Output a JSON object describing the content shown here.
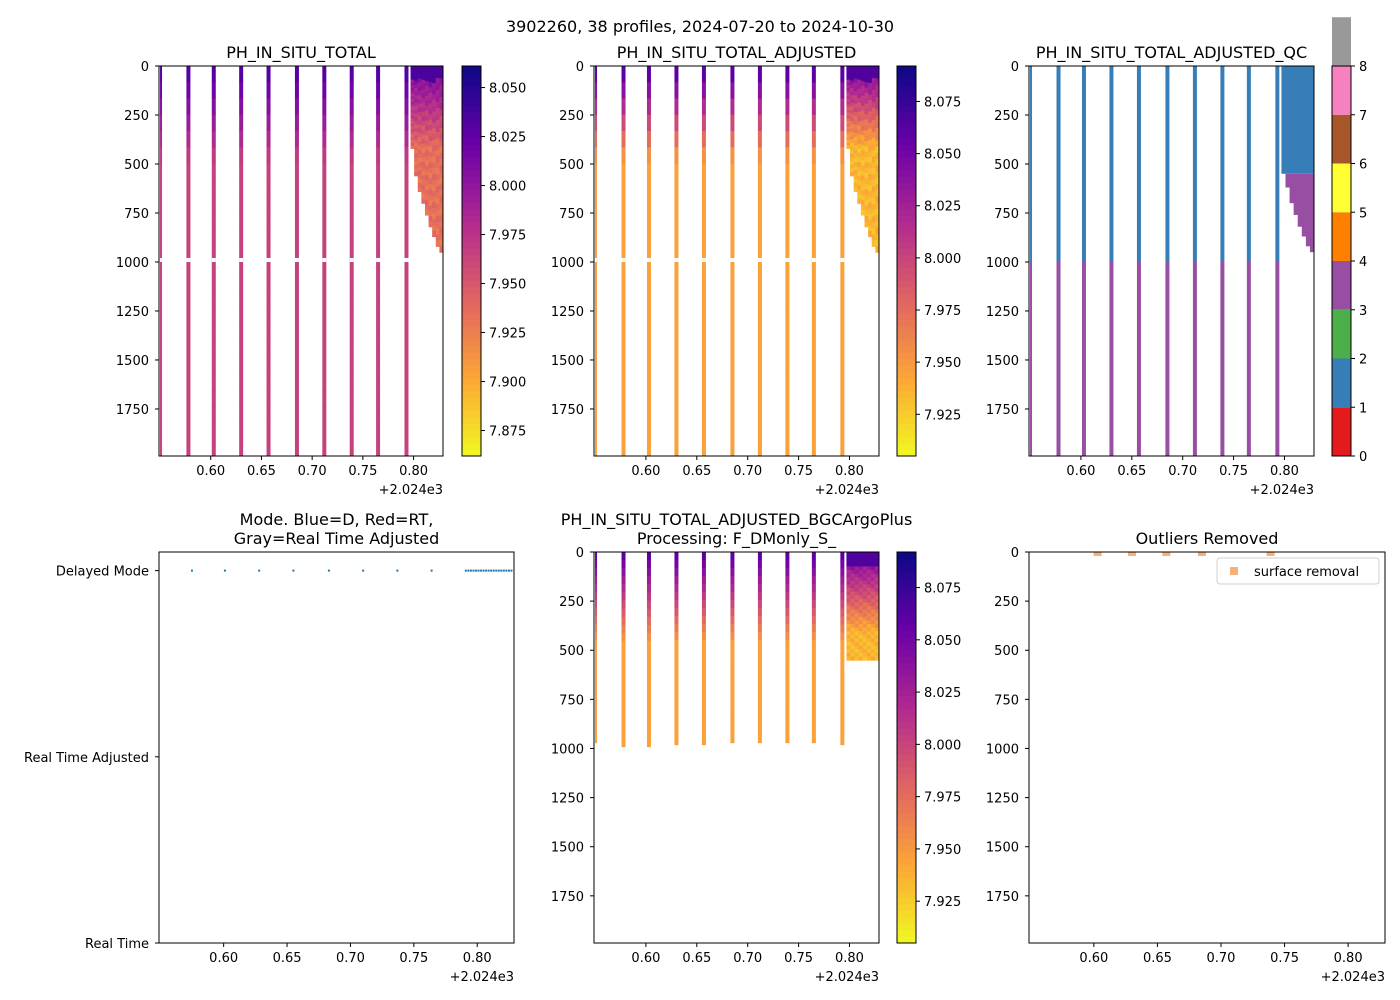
{
  "figure": {
    "suptitle": "3902260, 38 profiles, 2024-07-20 to 2024-10-30",
    "x_offset_label": "+2.024e3"
  },
  "chart_data": [
    {
      "id": "ph-total",
      "type": "heatmap",
      "title": "PH_IN_SITU_TOTAL",
      "x_ticks": [
        "0.60",
        "0.65",
        "0.70",
        "0.75",
        "0.80"
      ],
      "x_tick_values": [
        0.6,
        0.65,
        0.7,
        0.75,
        0.8
      ],
      "xlim": [
        0.549,
        0.829
      ],
      "y_ticks": [
        "0",
        "250",
        "500",
        "750",
        "1000",
        "1250",
        "1500",
        "1750"
      ],
      "y_tick_values": [
        0,
        250,
        500,
        750,
        1000,
        1250,
        1500,
        1750
      ],
      "ylim": [
        0,
        1990
      ],
      "colormap": "plasma_r",
      "colorbar": {
        "range": [
          7.862,
          8.061
        ],
        "ticks": [
          "7.875",
          "7.900",
          "7.925",
          "7.950",
          "7.975",
          "8.000",
          "8.025",
          "8.050"
        ],
        "tick_values": [
          7.875,
          7.9,
          7.925,
          7.95,
          7.975,
          8.0,
          8.025,
          8.05
        ]
      },
      "profiles": {
        "x": [
          0.551,
          0.578,
          0.603,
          0.63,
          0.657,
          0.685,
          0.712,
          0.739,
          0.765,
          0.793
        ],
        "max_depth": 1990,
        "gap_depth": 990,
        "surface_value": 8.03,
        "deep_value": 7.965
      },
      "dense_block": {
        "x_start": 0.797,
        "x_end": 0.829,
        "surface_value": 8.035,
        "mid_value": 7.935,
        "max_depth": [
          420,
          560,
          640,
          700,
          760,
          820,
          870,
          920,
          950
        ]
      }
    },
    {
      "id": "ph-adjusted",
      "type": "heatmap",
      "title": "PH_IN_SITU_TOTAL_ADJUSTED",
      "x_ticks": [
        "0.60",
        "0.65",
        "0.70",
        "0.75",
        "0.80"
      ],
      "x_tick_values": [
        0.6,
        0.65,
        0.7,
        0.75,
        0.8
      ],
      "xlim": [
        0.549,
        0.829
      ],
      "y_ticks": [
        "0",
        "250",
        "500",
        "750",
        "1000",
        "1250",
        "1500",
        "1750"
      ],
      "y_tick_values": [
        0,
        250,
        500,
        750,
        1000,
        1250,
        1500,
        1750
      ],
      "ylim": [
        0,
        1990
      ],
      "colormap": "plasma_r",
      "colorbar": {
        "range": [
          7.905,
          8.092
        ],
        "ticks": [
          "7.925",
          "7.950",
          "7.975",
          "8.000",
          "8.025",
          "8.050",
          "8.075"
        ],
        "tick_values": [
          7.925,
          7.95,
          7.975,
          8.0,
          8.025,
          8.05,
          8.075
        ]
      },
      "profiles": {
        "x": [
          0.551,
          0.578,
          0.603,
          0.63,
          0.657,
          0.685,
          0.712,
          0.739,
          0.765,
          0.793
        ],
        "max_depth": 1990,
        "gap_depth": 990,
        "surface_value": 8.06,
        "deep_value": 7.945
      },
      "dense_block": {
        "x_start": 0.797,
        "x_end": 0.829,
        "surface_value": 8.065,
        "mid_value": 7.935,
        "max_depth": [
          420,
          560,
          640,
          700,
          760,
          820,
          870,
          920,
          950
        ]
      }
    },
    {
      "id": "ph-adjusted-qc",
      "type": "heatmap",
      "title": "PH_IN_SITU_TOTAL_ADJUSTED_QC",
      "x_ticks": [
        "0.60",
        "0.65",
        "0.70",
        "0.75",
        "0.80"
      ],
      "x_tick_values": [
        0.6,
        0.65,
        0.7,
        0.75,
        0.8
      ],
      "xlim": [
        0.549,
        0.829
      ],
      "y_ticks": [
        "0",
        "250",
        "500",
        "750",
        "1000",
        "1250",
        "1500",
        "1750"
      ],
      "y_tick_values": [
        0,
        250,
        500,
        750,
        1000,
        1250,
        1500,
        1750
      ],
      "ylim": [
        0,
        1990
      ],
      "colormap": "qc-categorical",
      "colorbar": {
        "range": [
          0,
          8
        ],
        "ticks": [
          "0",
          "1",
          "2",
          "3",
          "4",
          "5",
          "6",
          "7",
          "8"
        ],
        "tick_values": [
          0,
          1,
          2,
          3,
          4,
          5,
          6,
          7,
          8
        ],
        "categories": [
          "#e41a1c",
          "#377eb8",
          "#4daf4a",
          "#984ea3",
          "#ff7f00",
          "#ffff33",
          "#a65628",
          "#f781bf",
          "#999999"
        ]
      },
      "profiles": {
        "x": [
          0.551,
          0.578,
          0.603,
          0.63,
          0.657,
          0.685,
          0.712,
          0.739,
          0.765,
          0.793
        ],
        "max_depth": 1990,
        "upper_flag": 1,
        "lower_flag": 3,
        "flag_change_depth": 1000
      },
      "dense_block": {
        "x_start": 0.797,
        "x_end": 0.829,
        "upper_flag": 1,
        "lower_flag": 3,
        "flag_change_depth": 550,
        "max_depth": [
          550,
          620,
          700,
          760,
          820,
          870,
          920,
          950
        ]
      }
    },
    {
      "id": "mode",
      "type": "scatter",
      "title_lines": [
        "Mode. Blue=D, Red=RT,",
        "Gray=Real Time Adjusted"
      ],
      "x_ticks": [
        "0.60",
        "0.65",
        "0.70",
        "0.75",
        "0.80"
      ],
      "x_tick_values": [
        0.6,
        0.65,
        0.7,
        0.75,
        0.8
      ],
      "xlim": [
        0.549,
        0.829
      ],
      "y_categories": [
        "Real Time",
        "Real Time Adjusted",
        "Delayed Mode"
      ],
      "ylim": [
        0,
        2.1
      ],
      "points": {
        "x": [
          0.575,
          0.601,
          0.628,
          0.655,
          0.683,
          0.71,
          0.737,
          0.764,
          0.791,
          0.793,
          0.795,
          0.797,
          0.799,
          0.801,
          0.803,
          0.805,
          0.807,
          0.809,
          0.811,
          0.813,
          0.815,
          0.817,
          0.819,
          0.821,
          0.823,
          0.825,
          0.827
        ],
        "y": 2,
        "color": "#1f77b4"
      }
    },
    {
      "id": "ph-bgcargoplus",
      "type": "heatmap",
      "title_lines": [
        "PH_IN_SITU_TOTAL_ADJUSTED_BGCArgoPlus",
        "Processing: F_DMonly_S_"
      ],
      "x_ticks": [
        "0.60",
        "0.65",
        "0.70",
        "0.75",
        "0.80"
      ],
      "x_tick_values": [
        0.6,
        0.65,
        0.7,
        0.75,
        0.8
      ],
      "xlim": [
        0.549,
        0.829
      ],
      "y_ticks": [
        "0",
        "250",
        "500",
        "750",
        "1000",
        "1250",
        "1500",
        "1750"
      ],
      "y_tick_values": [
        0,
        250,
        500,
        750,
        1000,
        1250,
        1500,
        1750
      ],
      "ylim": [
        0,
        1990
      ],
      "colormap": "plasma_r",
      "colorbar": {
        "range": [
          7.905,
          8.092
        ],
        "ticks": [
          "7.925",
          "7.950",
          "7.975",
          "8.000",
          "8.025",
          "8.050",
          "8.075"
        ],
        "tick_values": [
          7.925,
          7.95,
          7.975,
          8.0,
          8.025,
          8.05,
          8.075
        ]
      },
      "profiles": {
        "x": [
          0.551,
          0.578,
          0.603,
          0.63,
          0.657,
          0.685,
          0.712,
          0.739,
          0.765,
          0.793
        ],
        "max_depth": [
          970,
          990,
          990,
          980,
          980,
          970,
          970,
          970,
          970,
          980
        ],
        "surface_value": 8.06,
        "deep_value": 7.945
      },
      "dense_block": {
        "x_start": 0.797,
        "x_end": 0.829,
        "surface_value": 8.065,
        "mid_value": 7.935,
        "max_depth": [
          550,
          550,
          550,
          550,
          550,
          550,
          550,
          550
        ]
      }
    },
    {
      "id": "outliers",
      "type": "scatter",
      "title": "Outliers Removed",
      "x_ticks": [
        "0.60",
        "0.65",
        "0.70",
        "0.75",
        "0.80"
      ],
      "x_tick_values": [
        0.6,
        0.65,
        0.7,
        0.75,
        0.8
      ],
      "xlim": [
        0.549,
        0.829
      ],
      "y_ticks": [
        "0",
        "250",
        "500",
        "750",
        "1000",
        "1250",
        "1500",
        "1750"
      ],
      "y_tick_values": [
        0,
        250,
        500,
        750,
        1000,
        1250,
        1500,
        1750
      ],
      "ylim": [
        0,
        1990
      ],
      "legend": {
        "label": "surface removal",
        "placement": "top-right",
        "color": "#f5a263"
      },
      "points": {
        "x": [
          0.603,
          0.63,
          0.657,
          0.685,
          0.739
        ],
        "y": [
          0,
          0,
          0,
          0,
          0
        ]
      }
    }
  ]
}
